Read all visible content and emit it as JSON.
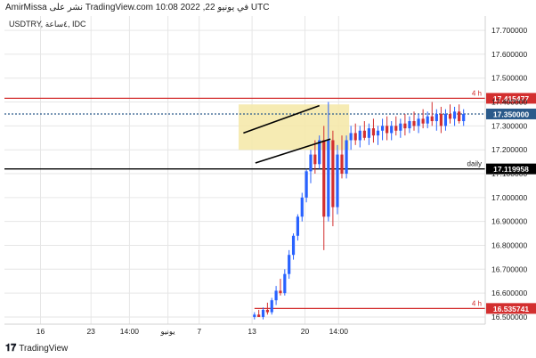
{
  "header": {
    "publish_line": "AmirMissa نشر على TradingView.com في يونيو 22, 2022 10:08 UTC"
  },
  "footer": {
    "brand": "TradingView"
  },
  "chart_data": {
    "type": "candlestick",
    "symbol_label": "USDTRY, ٤ساعة, IDC",
    "ylim": [
      16.47,
      17.76
    ],
    "y_ticks": [
      16.5,
      16.6,
      16.7,
      16.8,
      16.9,
      17.0,
      17.1,
      17.2,
      17.3,
      17.4,
      17.5,
      17.6,
      17.7
    ],
    "y_tick_labels": [
      "16.500000",
      "16.600000",
      "16.700000",
      "16.800000",
      "16.900000",
      "17.000000",
      "17.100000",
      "17.200000",
      "17.300000",
      "17.400000",
      "17.500000",
      "17.600000",
      "17.700000"
    ],
    "x_ticks": [
      {
        "label": "16",
        "x": 0.075
      },
      {
        "label": "23",
        "x": 0.18
      },
      {
        "label": "14:00",
        "x": 0.26
      },
      {
        "label": "يونيو",
        "x": 0.34
      },
      {
        "label": "7",
        "x": 0.405
      },
      {
        "label": "13",
        "x": 0.515
      },
      {
        "label": "20",
        "x": 0.625
      },
      {
        "label": "14:00",
        "x": 0.695
      }
    ],
    "levels": [
      {
        "value": 17.415477,
        "label": "17.415477",
        "color": "#d32f2f",
        "tag": "4 h"
      },
      {
        "value": 17.35,
        "label": "17.350000",
        "color": "#2a5a8a",
        "dotted": true
      },
      {
        "value": 17.119958,
        "label": "17.119958",
        "color": "#000000",
        "tag": "daily"
      },
      {
        "value": 16.535741,
        "label": "16.535741",
        "color": "#d32f2f",
        "tag": "4 h"
      }
    ],
    "zone": {
      "x_start": 0.487,
      "x_end": 0.717,
      "y_top": 17.39,
      "y_bottom": 17.2,
      "color": "#f4e8a6"
    },
    "channel": [
      {
        "x1": 0.497,
        "y1": 17.27,
        "x2": 0.655,
        "y2": 17.385
      },
      {
        "x1": 0.522,
        "y1": 17.145,
        "x2": 0.678,
        "y2": 17.245
      }
    ],
    "candles": [
      {
        "o": 16.5,
        "h": 16.52,
        "l": 16.49,
        "c": 16.51
      },
      {
        "o": 16.51,
        "h": 16.53,
        "l": 16.5,
        "c": 16.5
      },
      {
        "o": 16.5,
        "h": 16.54,
        "l": 16.49,
        "c": 16.53
      },
      {
        "o": 16.53,
        "h": 16.56,
        "l": 16.51,
        "c": 16.52
      },
      {
        "o": 16.52,
        "h": 16.58,
        "l": 16.51,
        "c": 16.57
      },
      {
        "o": 16.57,
        "h": 16.63,
        "l": 16.55,
        "c": 16.61
      },
      {
        "o": 16.61,
        "h": 16.66,
        "l": 16.59,
        "c": 16.6
      },
      {
        "o": 16.6,
        "h": 16.7,
        "l": 16.59,
        "c": 16.68
      },
      {
        "o": 16.68,
        "h": 16.78,
        "l": 16.66,
        "c": 16.76
      },
      {
        "o": 16.76,
        "h": 16.85,
        "l": 16.74,
        "c": 16.84
      },
      {
        "o": 16.84,
        "h": 16.93,
        "l": 16.82,
        "c": 16.92
      },
      {
        "o": 16.92,
        "h": 17.02,
        "l": 16.9,
        "c": 17.0
      },
      {
        "o": 17.0,
        "h": 17.12,
        "l": 16.98,
        "c": 17.11
      },
      {
        "o": 17.11,
        "h": 17.2,
        "l": 17.06,
        "c": 17.18
      },
      {
        "o": 17.18,
        "h": 17.24,
        "l": 17.1,
        "c": 17.14
      },
      {
        "o": 17.14,
        "h": 17.26,
        "l": 17.12,
        "c": 17.24
      },
      {
        "o": 17.24,
        "h": 17.3,
        "l": 16.78,
        "c": 16.92
      },
      {
        "o": 16.92,
        "h": 17.4,
        "l": 16.9,
        "c": 17.24
      },
      {
        "o": 17.24,
        "h": 17.28,
        "l": 16.88,
        "c": 16.96
      },
      {
        "o": 16.96,
        "h": 17.22,
        "l": 16.93,
        "c": 17.18
      },
      {
        "o": 17.18,
        "h": 17.26,
        "l": 17.08,
        "c": 17.1
      },
      {
        "o": 17.1,
        "h": 17.26,
        "l": 17.08,
        "c": 17.24
      },
      {
        "o": 17.24,
        "h": 17.3,
        "l": 17.2,
        "c": 17.27
      },
      {
        "o": 17.27,
        "h": 17.31,
        "l": 17.22,
        "c": 17.24
      },
      {
        "o": 17.24,
        "h": 17.3,
        "l": 17.21,
        "c": 17.28
      },
      {
        "o": 17.28,
        "h": 17.32,
        "l": 17.24,
        "c": 17.25
      },
      {
        "o": 17.25,
        "h": 17.31,
        "l": 17.22,
        "c": 17.29
      },
      {
        "o": 17.29,
        "h": 17.33,
        "l": 17.23,
        "c": 17.26
      },
      {
        "o": 17.26,
        "h": 17.3,
        "l": 17.22,
        "c": 17.28
      },
      {
        "o": 17.28,
        "h": 17.33,
        "l": 17.24,
        "c": 17.3
      },
      {
        "o": 17.3,
        "h": 17.34,
        "l": 17.24,
        "c": 17.27
      },
      {
        "o": 17.27,
        "h": 17.32,
        "l": 17.24,
        "c": 17.3
      },
      {
        "o": 17.3,
        "h": 17.34,
        "l": 17.26,
        "c": 17.28
      },
      {
        "o": 17.28,
        "h": 17.33,
        "l": 17.25,
        "c": 17.31
      },
      {
        "o": 17.31,
        "h": 17.35,
        "l": 17.26,
        "c": 17.29
      },
      {
        "o": 17.29,
        "h": 17.34,
        "l": 17.27,
        "c": 17.32
      },
      {
        "o": 17.32,
        "h": 17.36,
        "l": 17.28,
        "c": 17.3
      },
      {
        "o": 17.3,
        "h": 17.35,
        "l": 17.27,
        "c": 17.33
      },
      {
        "o": 17.33,
        "h": 17.37,
        "l": 17.29,
        "c": 17.31
      },
      {
        "o": 17.31,
        "h": 17.36,
        "l": 17.29,
        "c": 17.34
      },
      {
        "o": 17.34,
        "h": 17.4,
        "l": 17.3,
        "c": 17.32
      },
      {
        "o": 17.32,
        "h": 17.37,
        "l": 17.28,
        "c": 17.35
      },
      {
        "o": 17.35,
        "h": 17.38,
        "l": 17.27,
        "c": 17.3
      },
      {
        "o": 17.3,
        "h": 17.37,
        "l": 17.28,
        "c": 17.35
      },
      {
        "o": 17.35,
        "h": 17.39,
        "l": 17.31,
        "c": 17.33
      },
      {
        "o": 17.33,
        "h": 17.38,
        "l": 17.3,
        "c": 17.36
      },
      {
        "o": 17.36,
        "h": 17.39,
        "l": 17.31,
        "c": 17.32
      },
      {
        "o": 17.32,
        "h": 17.37,
        "l": 17.3,
        "c": 17.35
      }
    ],
    "candle_x_start": 0.475,
    "candle_x_end": 0.712,
    "colors": {
      "up": "#2962ff",
      "down": "#d32f2f",
      "grid": "#e6e6e6",
      "axis_text": "#222222"
    }
  }
}
